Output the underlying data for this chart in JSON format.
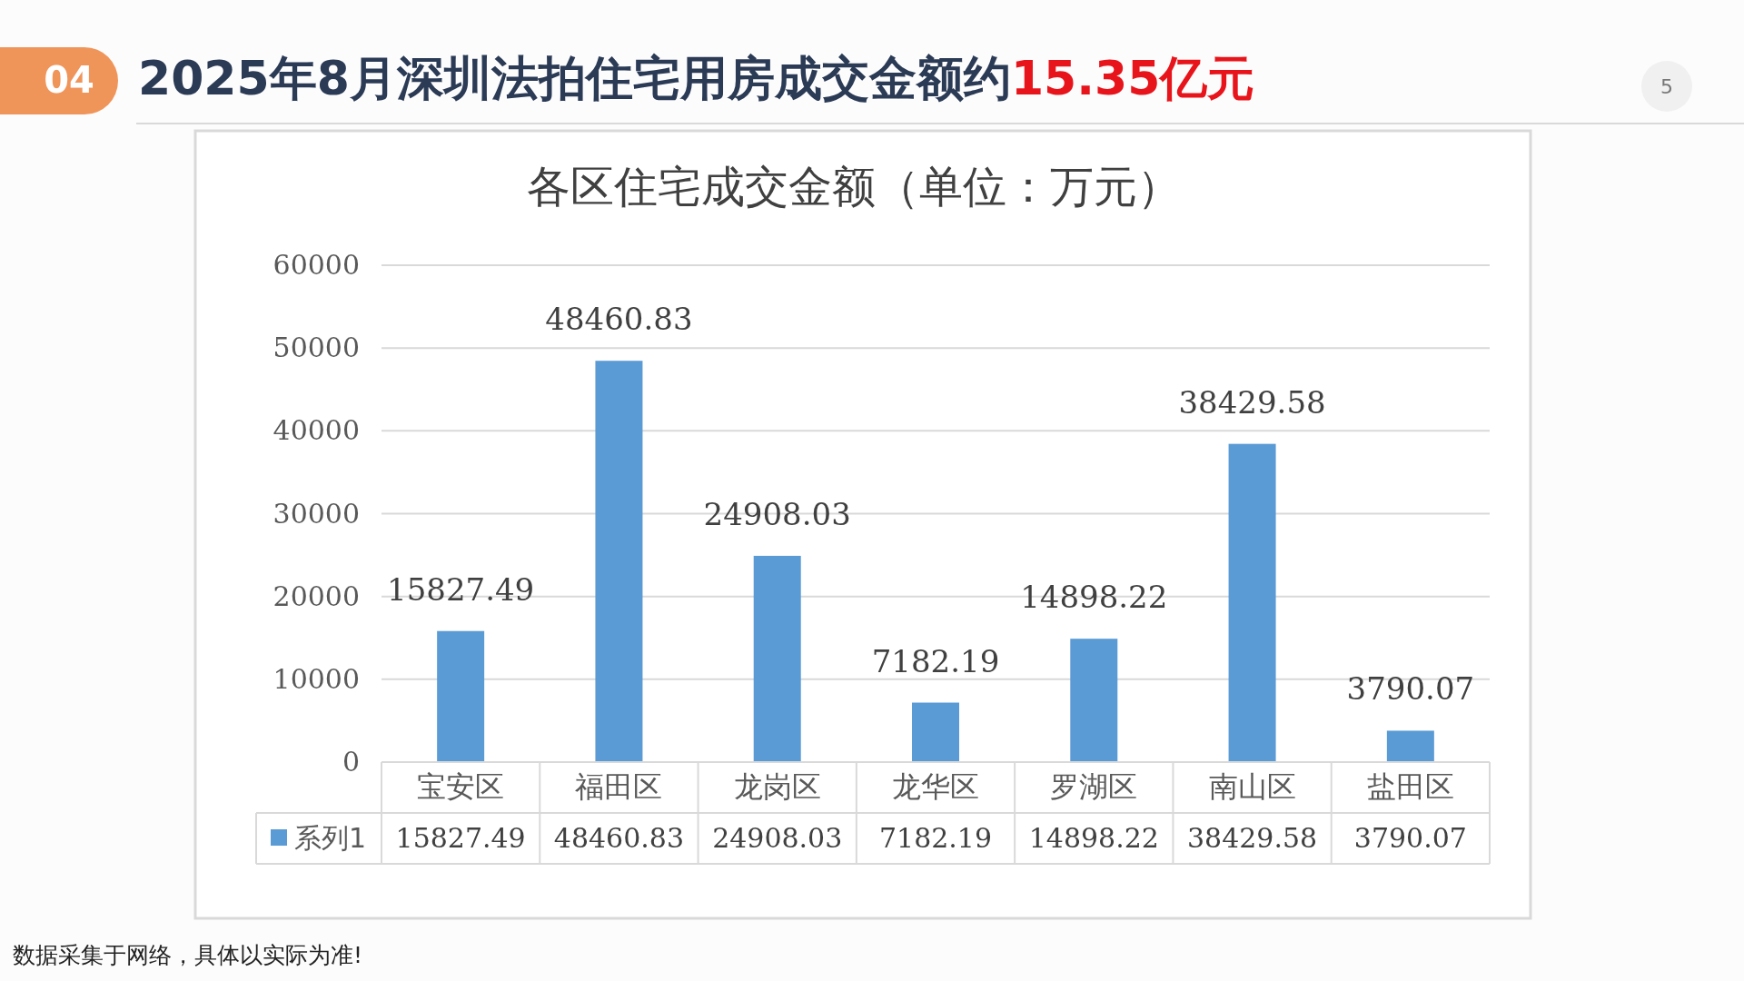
{
  "chart_data": {
    "type": "bar",
    "title": "2025年8月深圳法拍住宅用房成交金额约15.35亿元",
    "subtitle": "各区住宅成交金额（单位：万元）",
    "categories": [
      "宝安区",
      "福田区",
      "龙岗区",
      "龙华区",
      "罗湖区",
      "南山区",
      "盐田区"
    ],
    "series": [
      {
        "name": "系列1",
        "color": "#5b9bd5",
        "values": [
          15827.49,
          48460.83,
          24908.03,
          7182.19,
          14898.22,
          38429.58,
          3790.07
        ],
        "value_labels": [
          "15827.49",
          "48460.83",
          "24908.03",
          "7182.19",
          "14898.22",
          "38429.58",
          "3790.07"
        ]
      }
    ],
    "ylim": [
      0,
      60000
    ],
    "yticks": [
      0,
      10000,
      20000,
      30000,
      40000,
      50000,
      60000
    ],
    "grid": "y",
    "data_labels": true,
    "legend": "bottom",
    "annotations": [
      "04",
      "5",
      "数据采集于网络，具体以实际为准!",
      {
        "text": "15827.49",
        "x": "宝安区",
        "y": 15827.49
      },
      {
        "text": "48460.83",
        "x": "福田区",
        "y": 48460.83
      },
      {
        "text": "24908.03",
        "x": "龙岗区",
        "y": 24908.03
      },
      {
        "text": "7182.19",
        "x": "龙华区",
        "y": 7182.19
      },
      {
        "text": "14898.22",
        "x": "罗湖区",
        "y": 14898.22
      },
      {
        "text": "38429.58",
        "x": "南山区",
        "y": 38429.58
      },
      {
        "text": "3790.07",
        "x": "盐田区",
        "y": 3790.07
      }
    ]
  }
}
